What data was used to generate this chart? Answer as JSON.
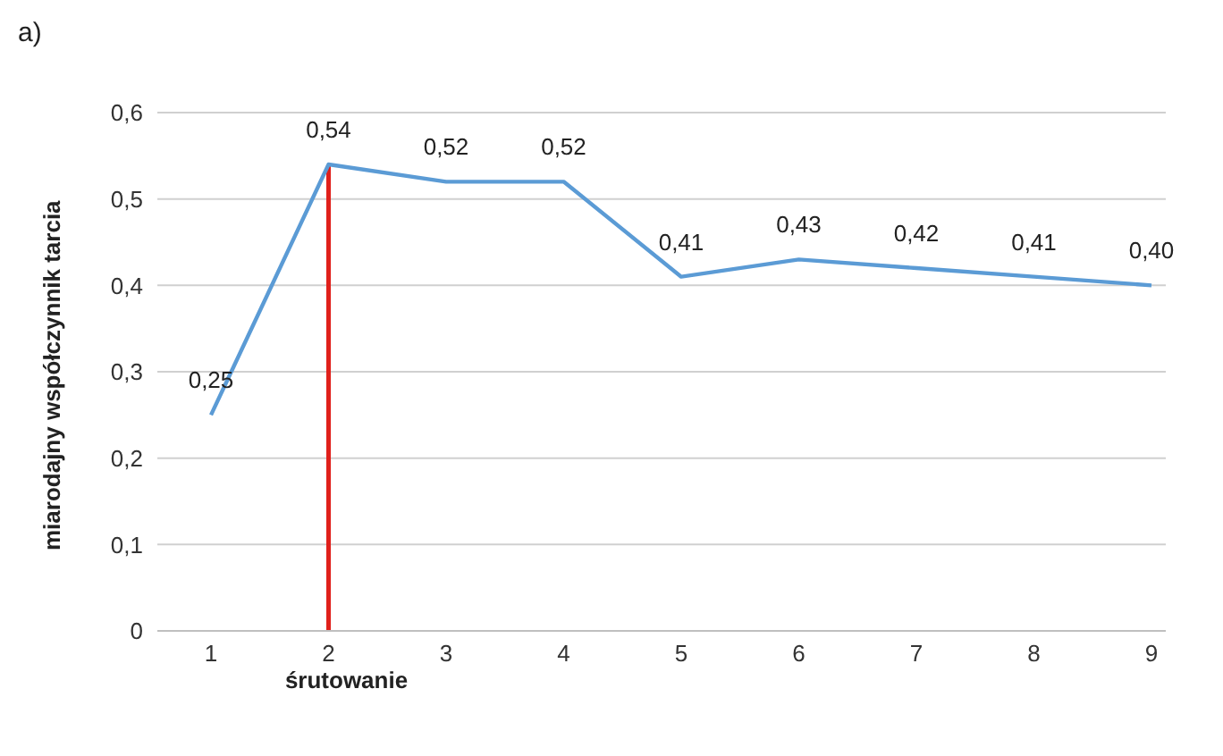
{
  "chart_data": {
    "type": "line",
    "ylabel": "miarodajny współczynnik tarcia",
    "annotations": [
      "a)"
    ],
    "categories": [
      "1",
      "2",
      "3",
      "4",
      "5",
      "6",
      "7",
      "8",
      "9"
    ],
    "series": [
      {
        "color": "#5b9bd5",
        "values": [
          0.25,
          0.54,
          0.52,
          0.52,
          0.41,
          0.43,
          0.42,
          0.41,
          0.4
        ],
        "value_labels": [
          "0,25",
          "0,54",
          "0,52",
          "0,52",
          "0,41",
          "0,43",
          "0,42",
          "0,41",
          "0,40"
        ]
      }
    ],
    "ylim": [
      0,
      0.6
    ],
    "yticks": [
      {
        "value": 0,
        "label": "0"
      },
      {
        "value": 0.1,
        "label": "0,1"
      },
      {
        "value": 0.2,
        "label": "0,2"
      },
      {
        "value": 0.3,
        "label": "0,3"
      },
      {
        "value": 0.4,
        "label": "0,4"
      },
      {
        "value": 0.5,
        "label": "0,5"
      },
      {
        "value": 0.6,
        "label": "0,6"
      }
    ],
    "grid": "y",
    "legend": false,
    "marker": "none",
    "line_style": "solid",
    "ref_lines": [
      {
        "axis": "x",
        "value": "2",
        "label": "śrutowanie",
        "color": "#e0201b"
      }
    ]
  }
}
